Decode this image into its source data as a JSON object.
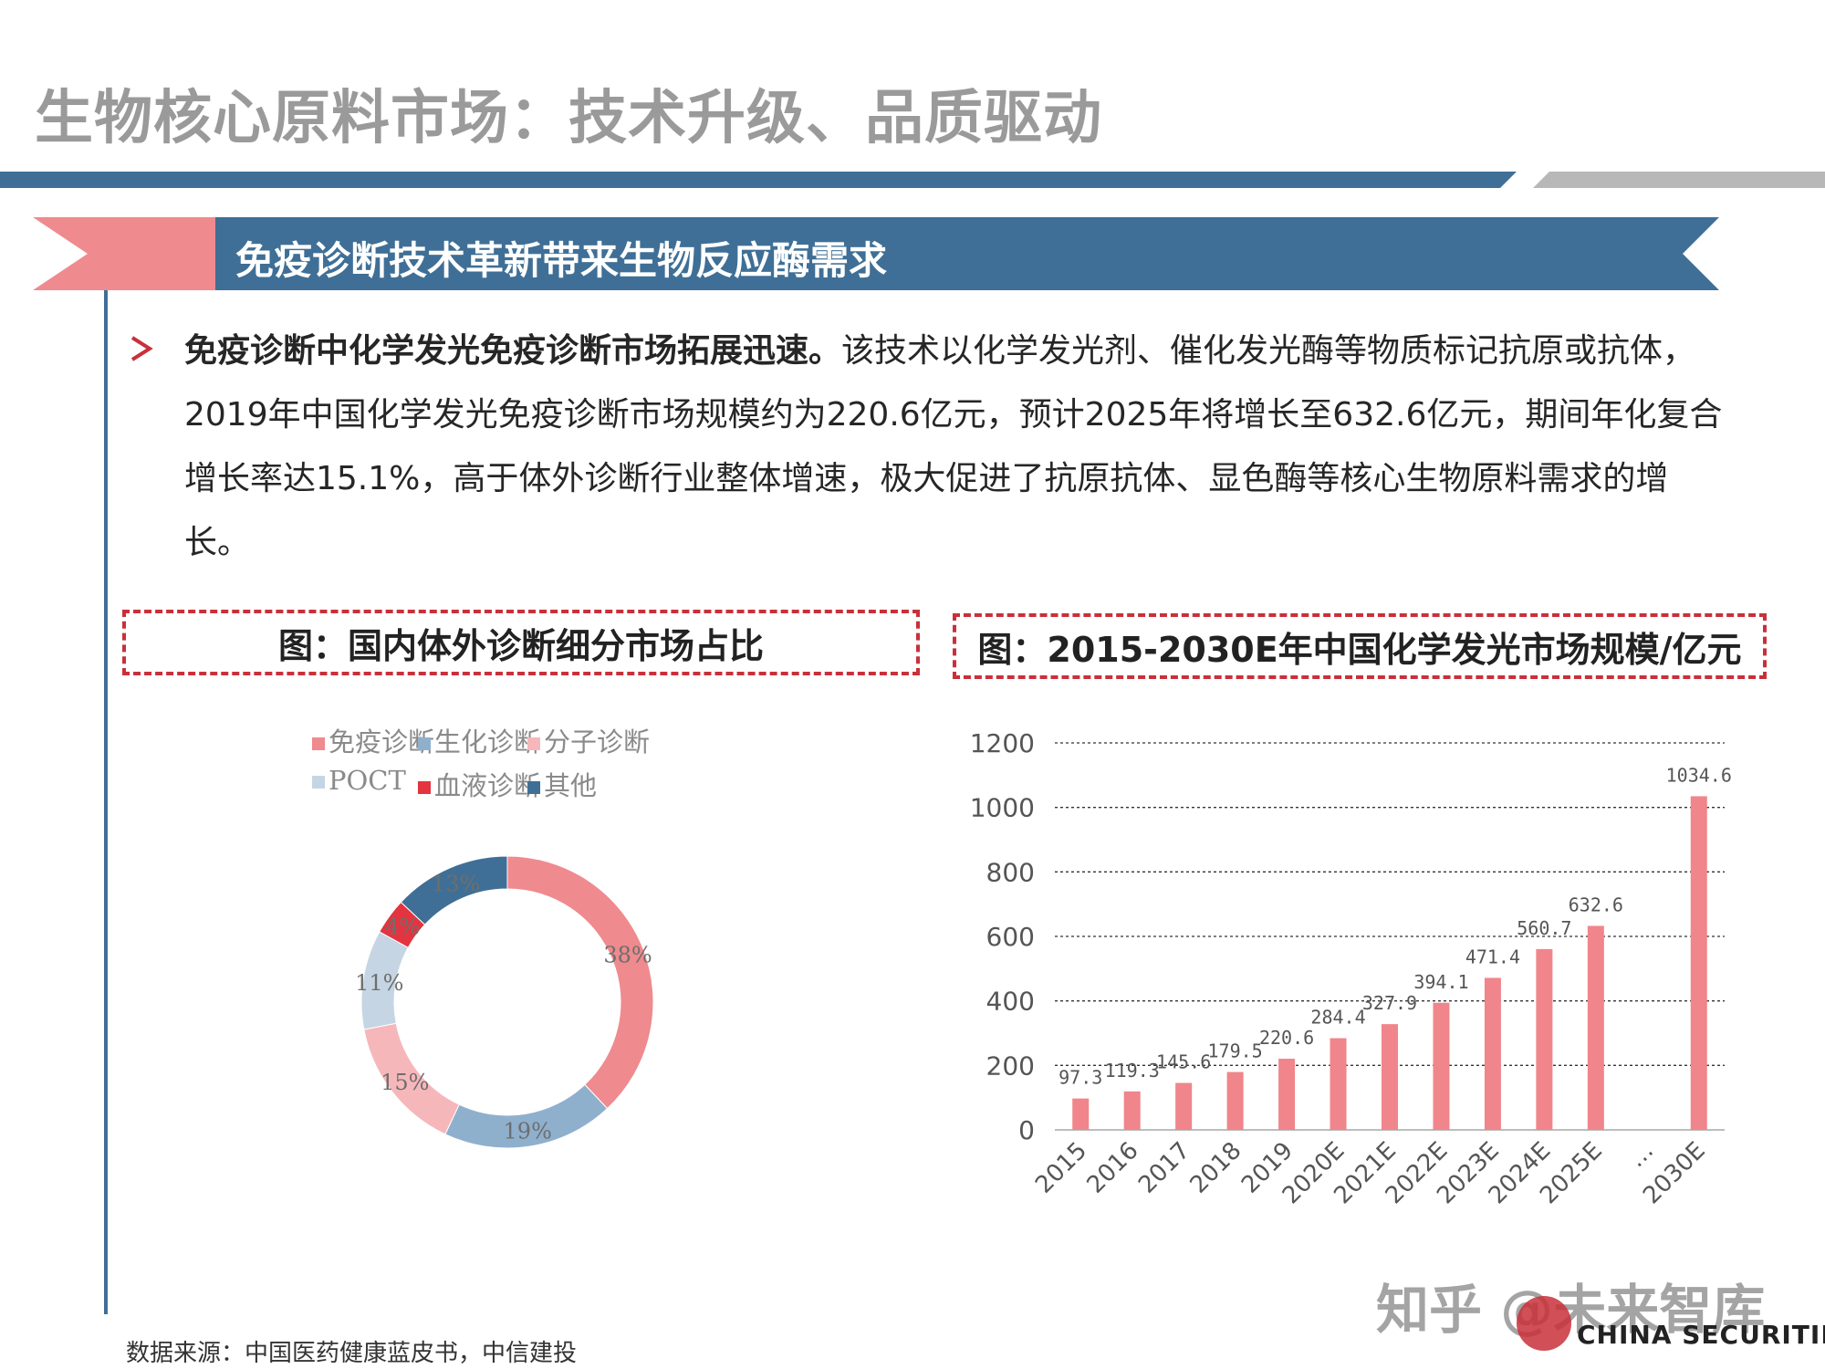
{
  "title": "生物核心原料市场：技术升级、品质驱动",
  "banner": "免疫诊断技术革新带来生物反应酶需求",
  "paragraph": {
    "bold": "免疫诊断中化学发光免疫诊断市场拓展迅速。",
    "body": "该技术以化学发光剂、催化发光酶等物质标记抗原或抗体，2019年中国化学发光免疫诊断市场规模约为220.6亿元，预计2025年将增长至632.6亿元，期间年化复合增长率达15.1%，高于体外诊断行业整体增速，极大促进了抗原抗体、显色酶等核心生物原料需求的增长。"
  },
  "captions": {
    "left": "图：国内体外诊断细分市场占比",
    "right": "图：2015-2030E年中国化学发光市场规模/亿元"
  },
  "source": "数据来源：中国医药健康蓝皮书，中信建投",
  "watermark": "知乎 @未来智库",
  "logo_text": "CHINA SECURITIES",
  "colors": {
    "accent_blue": "#3f6f96",
    "accent_pink": "#ef8a8e",
    "bar": "#f0858b",
    "dashed_red": "#c9303a"
  },
  "chart_data": [
    {
      "type": "pie",
      "title": "",
      "donut": true,
      "legend_position": "top",
      "slices": [
        {
          "name": "免疫诊断",
          "value": 38,
          "label": "38%",
          "color": "#ef8a8e"
        },
        {
          "name": "生化诊断",
          "value": 19,
          "label": "19%",
          "color": "#8fb0cd"
        },
        {
          "name": "分子诊断",
          "value": 15,
          "label": "15%",
          "color": "#f6b7bb"
        },
        {
          "name": "POCT",
          "value": 11,
          "label": "11%",
          "color": "#c5d5e3"
        },
        {
          "name": "血液诊断",
          "value": 4,
          "label": "4%",
          "color": "#e3343f"
        },
        {
          "name": "其他",
          "value": 13,
          "label": "13%",
          "color": "#3f6f96"
        }
      ]
    },
    {
      "type": "bar",
      "title": "",
      "categories": [
        "2015",
        "2016",
        "2017",
        "2018",
        "2019",
        "2020E",
        "2021E",
        "2022E",
        "2023E",
        "2024E",
        "2025E",
        "…",
        "2030E"
      ],
      "values": [
        97.3,
        119.3,
        145.6,
        179.5,
        220.6,
        284.4,
        327.9,
        394.1,
        471.4,
        560.7,
        632.6,
        null,
        1034.6
      ],
      "data_labels": [
        "97.3",
        "119.3",
        "145.6",
        "179.5",
        "220.6",
        "284.4",
        "327.9",
        "394.1",
        "471.4",
        "560.7",
        "632.6",
        "",
        "1034.6"
      ],
      "ylim": [
        0,
        1200
      ],
      "yticks": [
        "0",
        "200",
        "400",
        "600",
        "800",
        "1000",
        "1200"
      ],
      "grid": true,
      "xlabel": "",
      "ylabel": ""
    }
  ]
}
